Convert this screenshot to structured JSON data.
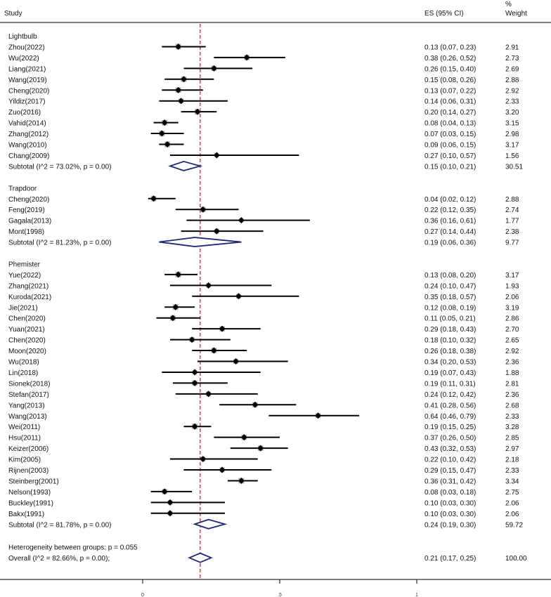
{
  "chart_data": {
    "type": "forest",
    "title": "",
    "x_axis": {
      "ticks": [
        {
          "value": 0,
          "label": "0"
        },
        {
          "value": 0.5,
          "label": ".5"
        },
        {
          "value": 1,
          "label": "1"
        }
      ]
    },
    "overall_reference": 0.21,
    "headers": {
      "study": "Study",
      "es": "ES (95% CI)",
      "weight_pct": "%",
      "weight": "Weight"
    },
    "groups": [
      {
        "name": "Lightbulb",
        "studies": [
          {
            "label": "Zhou(2022)",
            "es": 0.13,
            "lo": 0.07,
            "hi": 0.23,
            "ci_text": "0.13 (0.07, 0.23)",
            "weight": "2.91"
          },
          {
            "label": "Wu(2022)",
            "es": 0.38,
            "lo": 0.26,
            "hi": 0.52,
            "ci_text": "0.38 (0.26, 0.52)",
            "weight": "2.73"
          },
          {
            "label": "Liang(2021)",
            "es": 0.26,
            "lo": 0.15,
            "hi": 0.4,
            "ci_text": "0.26 (0.15, 0.40)",
            "weight": "2.69"
          },
          {
            "label": "Wang(2019)",
            "es": 0.15,
            "lo": 0.08,
            "hi": 0.26,
            "ci_text": "0.15 (0.08, 0.26)",
            "weight": "2.88"
          },
          {
            "label": "Cheng(2020)",
            "es": 0.13,
            "lo": 0.07,
            "hi": 0.22,
            "ci_text": "0.13 (0.07, 0.22)",
            "weight": "2.92"
          },
          {
            "label": "Yildiz(2017)",
            "es": 0.14,
            "lo": 0.06,
            "hi": 0.31,
            "ci_text": "0.14 (0.06, 0.31)",
            "weight": "2.33"
          },
          {
            "label": "Zuo(2016)",
            "es": 0.2,
            "lo": 0.14,
            "hi": 0.27,
            "ci_text": "0.20 (0.14, 0.27)",
            "weight": "3.20"
          },
          {
            "label": "Vahid(2014)",
            "es": 0.08,
            "lo": 0.04,
            "hi": 0.13,
            "ci_text": "0.08 (0.04, 0.13)",
            "weight": "3.15"
          },
          {
            "label": "Zhang(2012)",
            "es": 0.07,
            "lo": 0.03,
            "hi": 0.15,
            "ci_text": "0.07 (0.03, 0.15)",
            "weight": "2.98"
          },
          {
            "label": "Wang(2010)",
            "es": 0.09,
            "lo": 0.06,
            "hi": 0.15,
            "ci_text": "0.09 (0.06, 0.15)",
            "weight": "3.17"
          },
          {
            "label": "Chang(2009)",
            "es": 0.27,
            "lo": 0.1,
            "hi": 0.57,
            "ci_text": "0.27 (0.10, 0.57)",
            "weight": "1.56"
          }
        ],
        "subtotal": {
          "label": "Subtotal  (I^2 = 73.02%, p = 0.00)",
          "es": 0.15,
          "lo": 0.1,
          "hi": 0.21,
          "ci_text": "0.15 (0.10, 0.21)",
          "weight": "30.51"
        }
      },
      {
        "name": "Trapdoor",
        "studies": [
          {
            "label": "Cheng(2020)",
            "es": 0.04,
            "lo": 0.02,
            "hi": 0.12,
            "ci_text": "0.04 (0.02, 0.12)",
            "weight": "2.88"
          },
          {
            "label": "Feng(2019)",
            "es": 0.22,
            "lo": 0.12,
            "hi": 0.35,
            "ci_text": "0.22 (0.12, 0.35)",
            "weight": "2.74"
          },
          {
            "label": "Gagala(2013)",
            "es": 0.36,
            "lo": 0.16,
            "hi": 0.61,
            "ci_text": "0.36 (0.16, 0.61)",
            "weight": "1.77"
          },
          {
            "label": "Mont(1998)",
            "es": 0.27,
            "lo": 0.14,
            "hi": 0.44,
            "ci_text": "0.27 (0.14, 0.44)",
            "weight": "2.38"
          }
        ],
        "subtotal": {
          "label": "Subtotal  (I^2 = 81.23%, p = 0.00)",
          "es": 0.19,
          "lo": 0.06,
          "hi": 0.36,
          "ci_text": "0.19 (0.06, 0.36)",
          "weight": "9.77"
        }
      },
      {
        "name": "Phemister",
        "studies": [
          {
            "label": "Yue(2022)",
            "es": 0.13,
            "lo": 0.08,
            "hi": 0.2,
            "ci_text": "0.13 (0.08, 0.20)",
            "weight": "3.17"
          },
          {
            "label": "Zhang(2021)",
            "es": 0.24,
            "lo": 0.1,
            "hi": 0.47,
            "ci_text": "0.24 (0.10, 0.47)",
            "weight": "1.93"
          },
          {
            "label": "Kuroda(2021)",
            "es": 0.35,
            "lo": 0.18,
            "hi": 0.57,
            "ci_text": "0.35 (0.18, 0.57)",
            "weight": "2.06"
          },
          {
            "label": "Jie(2021)",
            "es": 0.12,
            "lo": 0.08,
            "hi": 0.19,
            "ci_text": "0.12 (0.08, 0.19)",
            "weight": "3.19"
          },
          {
            "label": "Chen(2020)",
            "es": 0.11,
            "lo": 0.05,
            "hi": 0.21,
            "ci_text": "0.11 (0.05, 0.21)",
            "weight": "2.86"
          },
          {
            "label": "Yuan(2021)",
            "es": 0.29,
            "lo": 0.18,
            "hi": 0.43,
            "ci_text": "0.29 (0.18, 0.43)",
            "weight": "2.70"
          },
          {
            "label": "Chen(2020)",
            "es": 0.18,
            "lo": 0.1,
            "hi": 0.32,
            "ci_text": "0.18 (0.10, 0.32)",
            "weight": "2.65"
          },
          {
            "label": "Moon(2020)",
            "es": 0.26,
            "lo": 0.18,
            "hi": 0.38,
            "ci_text": "0.26 (0.18, 0.38)",
            "weight": "2.92"
          },
          {
            "label": "Wu(2018)",
            "es": 0.34,
            "lo": 0.2,
            "hi": 0.53,
            "ci_text": "0.34 (0.20, 0.53)",
            "weight": "2.36"
          },
          {
            "label": "Lin(2018)",
            "es": 0.19,
            "lo": 0.07,
            "hi": 0.43,
            "ci_text": "0.19 (0.07, 0.43)",
            "weight": "1.88"
          },
          {
            "label": "Sionek(2018)",
            "es": 0.19,
            "lo": 0.11,
            "hi": 0.31,
            "ci_text": "0.19 (0.11, 0.31)",
            "weight": "2.81"
          },
          {
            "label": "Stefan(2017)",
            "es": 0.24,
            "lo": 0.12,
            "hi": 0.42,
            "ci_text": "0.24 (0.12, 0.42)",
            "weight": "2.36"
          },
          {
            "label": "Yang(2013)",
            "es": 0.41,
            "lo": 0.28,
            "hi": 0.56,
            "ci_text": "0.41 (0.28, 0.56)",
            "weight": "2.68"
          },
          {
            "label": "Wang(2013)",
            "es": 0.64,
            "lo": 0.46,
            "hi": 0.79,
            "ci_text": "0.64 (0.46, 0.79)",
            "weight": "2.33"
          },
          {
            "label": "Wei(2011)",
            "es": 0.19,
            "lo": 0.15,
            "hi": 0.25,
            "ci_text": "0.19 (0.15, 0.25)",
            "weight": "3.28"
          },
          {
            "label": "Hsu(2011)",
            "es": 0.37,
            "lo": 0.26,
            "hi": 0.5,
            "ci_text": "0.37 (0.26, 0.50)",
            "weight": "2.85"
          },
          {
            "label": "Keizer(2006)",
            "es": 0.43,
            "lo": 0.32,
            "hi": 0.53,
            "ci_text": "0.43 (0.32, 0.53)",
            "weight": "2.97"
          },
          {
            "label": "Kim(2005)",
            "es": 0.22,
            "lo": 0.1,
            "hi": 0.42,
            "ci_text": "0.22 (0.10, 0.42)",
            "weight": "2.18"
          },
          {
            "label": "Rijnen(2003)",
            "es": 0.29,
            "lo": 0.15,
            "hi": 0.47,
            "ci_text": "0.29 (0.15, 0.47)",
            "weight": "2.33"
          },
          {
            "label": "Steinberg(2001)",
            "es": 0.36,
            "lo": 0.31,
            "hi": 0.42,
            "ci_text": "0.36 (0.31, 0.42)",
            "weight": "3.34"
          },
          {
            "label": "Nelson(1993)",
            "es": 0.08,
            "lo": 0.03,
            "hi": 0.18,
            "ci_text": "0.08 (0.03, 0.18)",
            "weight": "2.75"
          },
          {
            "label": "Buckley(1991)",
            "es": 0.1,
            "lo": 0.03,
            "hi": 0.3,
            "ci_text": "0.10 (0.03, 0.30)",
            "weight": "2.06"
          },
          {
            "label": "Bakx(1991)",
            "es": 0.1,
            "lo": 0.03,
            "hi": 0.3,
            "ci_text": "0.10 (0.03, 0.30)",
            "weight": "2.06"
          }
        ],
        "subtotal": {
          "label": "Subtotal  (I^2 = 81.78%, p = 0.00)",
          "es": 0.24,
          "lo": 0.19,
          "hi": 0.3,
          "ci_text": "0.24 (0.19, 0.30)",
          "weight": "59.72"
        }
      }
    ],
    "heterogeneity_text": "Heterogeneity between groups: p = 0.055",
    "overall": {
      "label": "Overall  (I^2 = 82.66%, p = 0.00);",
      "es": 0.21,
      "lo": 0.17,
      "hi": 0.25,
      "ci_text": "0.21 (0.17, 0.25)",
      "weight": "100.00"
    }
  }
}
